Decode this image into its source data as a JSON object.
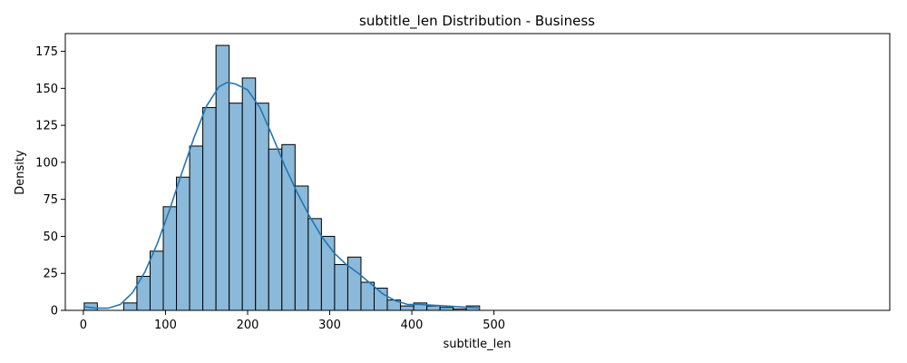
{
  "chart_data": {
    "type": "bar",
    "subtype": "histogram-with-kde",
    "title": "subtitle_len Distribution - Business",
    "xlabel": "subtitle_len",
    "ylabel": "Density",
    "xlim": [
      -22,
      982
    ],
    "ylim": [
      0,
      187
    ],
    "x_ticks": [
      0,
      100,
      200,
      300,
      400,
      500
    ],
    "y_ticks": [
      0,
      25,
      50,
      75,
      100,
      125,
      150,
      175
    ],
    "bin_start": 1,
    "bin_width": 16.05,
    "bin_counts": [
      5,
      0,
      0,
      5,
      23,
      40,
      70,
      90,
      111,
      137,
      179,
      140,
      157,
      140,
      109,
      112,
      84,
      62,
      50,
      31,
      36,
      19,
      15,
      7,
      3,
      5,
      3,
      2,
      1,
      3
    ],
    "kde": {
      "x": [
        1,
        15,
        30,
        45,
        60,
        75,
        90,
        105,
        120,
        135,
        150,
        165,
        175,
        185,
        200,
        215,
        230,
        245,
        260,
        275,
        290,
        305,
        320,
        335,
        350,
        365,
        380,
        395,
        410,
        425,
        440,
        455,
        470,
        483
      ],
      "y": [
        2.5,
        1.5,
        1.5,
        4,
        12,
        26,
        45,
        68,
        93,
        117,
        138,
        151,
        154,
        153,
        149,
        137,
        118,
        98,
        80,
        64,
        50,
        39,
        31,
        25,
        18,
        11,
        6.5,
        4,
        4,
        3.5,
        3,
        2.5,
        2,
        1.5
      ]
    },
    "colors": {
      "bar_fill": "#8bb9d9",
      "bar_edge": "#000000",
      "kde_line": "#2277b4"
    },
    "grid": false,
    "legend": "none"
  }
}
